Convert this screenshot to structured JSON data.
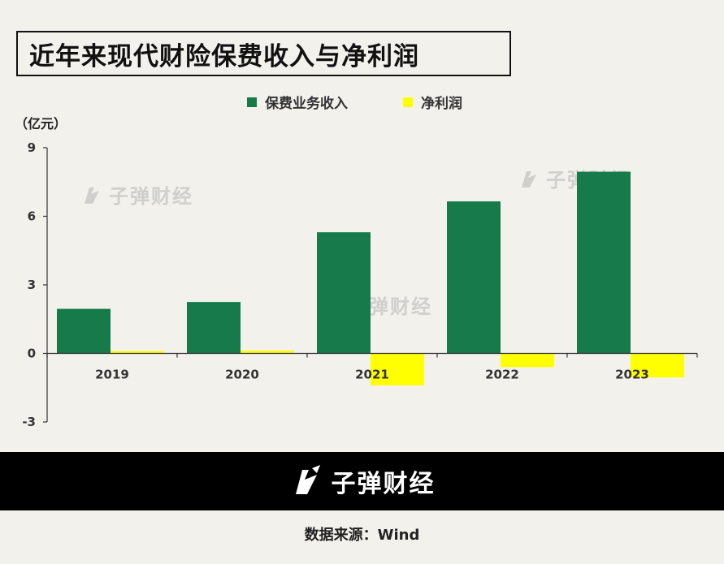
{
  "title": "近年来现代财险保费收入与净利润",
  "unit_label": "（亿元）",
  "watermark_text": "子弹财经",
  "footer_brand": "子弹财经",
  "source": "数据来源：Wind",
  "colors": {
    "premium": "#167a4a",
    "profit": "#ffff00",
    "axis": "#333333"
  },
  "chart_data": {
    "type": "bar",
    "categories": [
      "2019",
      "2020",
      "2021",
      "2022",
      "2023"
    ],
    "series": [
      {
        "name": "保费业务收入",
        "values": [
          1.95,
          2.25,
          5.3,
          6.65,
          7.95
        ]
      },
      {
        "name": "净利润",
        "values": [
          0.1,
          0.12,
          -1.4,
          -0.6,
          -1.05
        ]
      }
    ],
    "yticks": [
      9,
      6,
      3,
      0,
      -3
    ],
    "ylim": [
      -3,
      9
    ],
    "legend": "top-center",
    "grid": false
  }
}
